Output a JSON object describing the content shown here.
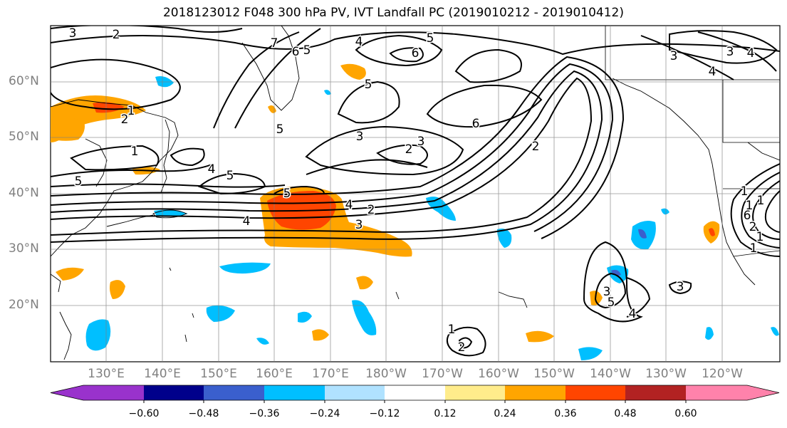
{
  "title": "2018123012 F048 300 hPa PV, IVT Landfall PC (2019010212 - 2019010412)",
  "latitude_labels": [
    "60°N",
    "50°N",
    "40°N",
    "30°N",
    "20°N"
  ],
  "longitude_labels": [
    "130°E",
    "140°E",
    "150°E",
    "160°E",
    "170°E",
    "180°W",
    "170°W",
    "160°W",
    "150°W",
    "140°W",
    "130°W",
    "120°W"
  ],
  "contour_labels": [
    "3",
    "2",
    "4",
    "5",
    "6",
    "7",
    "6",
    "5",
    "5",
    "6",
    "3",
    "4",
    "4",
    "3",
    "5",
    "2",
    "5",
    "5",
    "4",
    "3",
    "2",
    "3",
    "4",
    "5",
    "4",
    "2",
    "3",
    "1",
    "1",
    "2",
    "5",
    "3",
    "4",
    "2",
    "1",
    "3",
    "1",
    "1",
    "2",
    "1",
    "1",
    "1",
    "6"
  ],
  "colorbar": {
    "ticks": [
      "−0.60",
      "−0.48",
      "−0.36",
      "−0.24",
      "−0.12",
      "0.12",
      "0.24",
      "0.36",
      "0.48",
      "0.60"
    ],
    "colors": [
      "#9932cc",
      "#00008b",
      "#3a5fcd",
      "#00bfff",
      "#b0e2ff",
      "#ffffff",
      "#ffec8b",
      "#ffa500",
      "#ff4500",
      "#b22222",
      "#ff82ab"
    ]
  }
}
